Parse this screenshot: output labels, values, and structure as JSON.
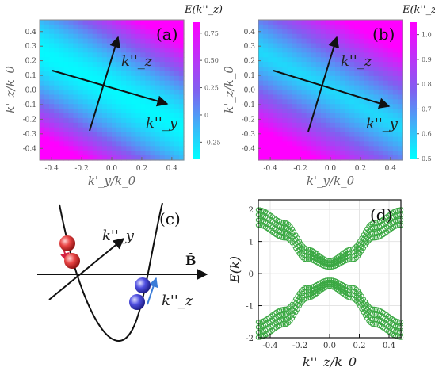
{
  "chart_data": [
    {
      "id": "a",
      "type": "heatmap",
      "panel_label": "(a)",
      "xlabel": "k'_y/k_0",
      "ylabel": "k'_z/k_0",
      "xlim": [
        -0.48,
        0.48
      ],
      "ylim": [
        -0.48,
        0.48
      ],
      "x_ticks": [
        "-0.4",
        "-0.2",
        "0.0",
        "0.2",
        "0.4"
      ],
      "y_ticks": [
        "0.4",
        "0.3",
        "0.2",
        "0.1",
        "0.0",
        "-0.1",
        "-0.2",
        "-0.3",
        "-0.4"
      ],
      "colorbar_title": "E(k''_z)",
      "colorbar_ticks": [
        "0.75",
        "0.50",
        "0.25",
        "0",
        "-0.25"
      ],
      "colorbar_range": [
        -0.4,
        0.85
      ],
      "colormap": [
        "#00ffff",
        "#ff00ff"
      ],
      "arrow_labels": [
        "k''_z",
        "k''_y"
      ]
    },
    {
      "id": "b",
      "type": "heatmap",
      "panel_label": "(b)",
      "xlabel": "k'_y/k_0",
      "ylabel": "k'_z/k_0",
      "xlim": [
        -0.48,
        0.48
      ],
      "ylim": [
        -0.48,
        0.48
      ],
      "x_ticks": [
        "-0.4",
        "-0.2",
        "0.0",
        "0.2",
        "0.4"
      ],
      "y_ticks": [
        "0.4",
        "0.3",
        "0.2",
        "0.1",
        "0.0",
        "-0.1",
        "-0.2",
        "-0.3",
        "-0.4"
      ],
      "colorbar_title": "E(k''_z)",
      "colorbar_ticks": [
        "1.0",
        "0.9",
        "0.8",
        "0.7",
        "0.6",
        "0.5"
      ],
      "colorbar_range": [
        0.5,
        1.05
      ],
      "colormap": [
        "#00ffff",
        "#ff00ff"
      ],
      "arrow_labels": [
        "k''_z",
        "k''_y"
      ]
    },
    {
      "id": "c",
      "type": "diagram",
      "panel_label": "(c)",
      "labels": [
        "k''_y",
        "B̂",
        "k''_z"
      ],
      "colors": {
        "red_balls": "#e03838",
        "blue_balls": "#4040d8",
        "red_arrow": "#d42040",
        "blue_arrow": "#3a7cd8"
      }
    },
    {
      "id": "d",
      "type": "line",
      "panel_label": "(d)",
      "xlabel": "k''_z/k_0",
      "ylabel": "E(k)",
      "xlim": [
        -0.48,
        0.48
      ],
      "ylim": [
        -2,
        2.3
      ],
      "x_ticks": [
        "-0.4",
        "-0.2",
        "0.0",
        "0.2",
        "0.4"
      ],
      "y_ticks": [
        "2",
        "1",
        "0",
        "-1",
        "-2"
      ],
      "marker_color": "#3aa842",
      "upper_band_center": {
        "x": [
          -0.48,
          -0.3,
          -0.15,
          0,
          0.15,
          0.3,
          0.48
        ],
        "y": [
          1.75,
          1.35,
          0.6,
          0.3,
          0.6,
          1.35,
          1.75
        ]
      },
      "lower_band_center": {
        "x": [
          -0.48,
          -0.3,
          -0.15,
          0,
          0.15,
          0.3,
          0.48
        ],
        "y": [
          -1.75,
          -1.35,
          -0.6,
          -0.3,
          -0.6,
          -1.35,
          -1.75
        ]
      },
      "band_spread": 0.16,
      "series_count": 4
    }
  ]
}
